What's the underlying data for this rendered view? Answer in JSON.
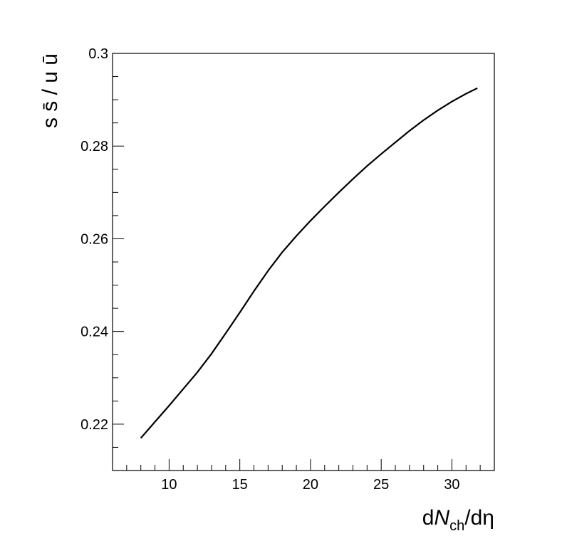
{
  "chart_data": {
    "type": "line",
    "xlabel": {
      "pre": "d",
      "var": "N",
      "sub": "ch",
      "post": "/dη"
    },
    "ylabel": "s s̄ / u ū",
    "xlim": [
      6.0,
      33.0
    ],
    "ylim": [
      0.21,
      0.3
    ],
    "x_major_ticks": [
      10,
      15,
      20,
      25,
      30
    ],
    "x_tick_labels": [
      "10",
      "15",
      "20",
      "25",
      "30"
    ],
    "x_minor_step": 1,
    "y_major_ticks": [
      0.22,
      0.24,
      0.26,
      0.28,
      0.3
    ],
    "y_tick_labels": [
      "0.22",
      "0.24",
      "0.26",
      "0.28",
      "0.3"
    ],
    "y_minor_step": 0.005,
    "grid": false,
    "series": [
      {
        "color": "#000000",
        "x": [
          8.0,
          9.0,
          10.0,
          11.0,
          12.0,
          13.0,
          14.0,
          15.0,
          16.0,
          17.0,
          18.0,
          19.0,
          20.0,
          21.0,
          22.0,
          23.0,
          24.0,
          25.0,
          26.0,
          27.0,
          28.0,
          29.0,
          30.0,
          31.0,
          31.8
        ],
        "y": [
          0.217,
          0.2205,
          0.224,
          0.2276,
          0.2312,
          0.2352,
          0.2396,
          0.2441,
          0.2487,
          0.2531,
          0.2571,
          0.2606,
          0.2639,
          0.267,
          0.27,
          0.2729,
          0.2757,
          0.2783,
          0.2808,
          0.2833,
          0.2856,
          0.2877,
          0.2896,
          0.2913,
          0.2925
        ]
      }
    ]
  }
}
